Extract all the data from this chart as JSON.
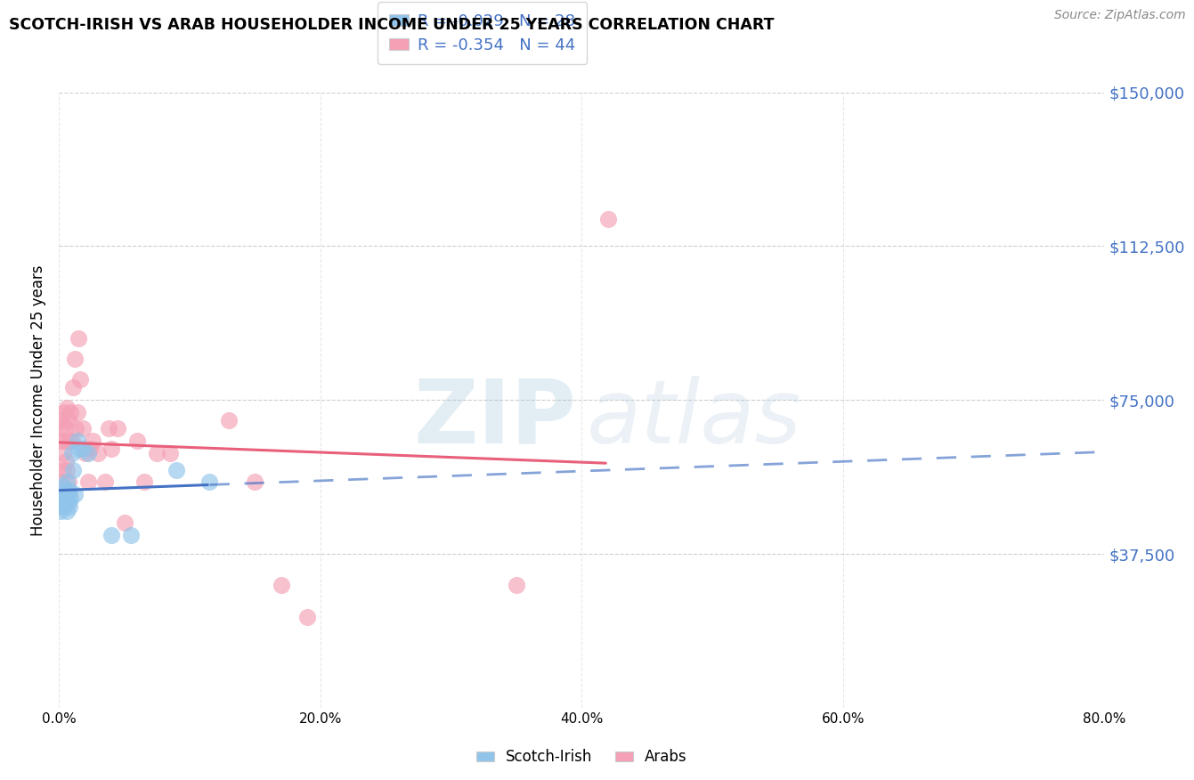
{
  "title": "SCOTCH-IRISH VS ARAB HOUSEHOLDER INCOME UNDER 25 YEARS CORRELATION CHART",
  "source": "Source: ZipAtlas.com",
  "ylabel": "Householder Income Under 25 years",
  "ytick_labels": [
    "$37,500",
    "$75,000",
    "$112,500",
    "$150,000"
  ],
  "ytick_values": [
    37500,
    75000,
    112500,
    150000
  ],
  "ymin": 0,
  "ymax": 150000,
  "xmin": 0.0,
  "xmax": 0.8,
  "legend_blue_r": "R = -0.029",
  "legend_blue_n": "N = 28",
  "legend_pink_r": "R = -0.354",
  "legend_pink_n": "N = 44",
  "blue_scatter_color": "#90C4EA",
  "pink_scatter_color": "#F4A0B5",
  "blue_line_color": "#4472C4",
  "pink_line_color": "#E8607A",
  "scotch_irish_x": [
    0.001,
    0.001,
    0.002,
    0.002,
    0.003,
    0.003,
    0.004,
    0.004,
    0.005,
    0.005,
    0.006,
    0.006,
    0.007,
    0.007,
    0.008,
    0.008,
    0.009,
    0.01,
    0.011,
    0.012,
    0.014,
    0.015,
    0.018,
    0.022,
    0.04,
    0.055,
    0.09,
    0.115
  ],
  "scotch_irish_y": [
    50000,
    48000,
    52000,
    50000,
    54000,
    49000,
    52000,
    50000,
    51000,
    53000,
    48000,
    55000,
    52000,
    50000,
    53000,
    49000,
    51000,
    62000,
    58000,
    52000,
    65000,
    63000,
    63000,
    62000,
    42000,
    42000,
    58000,
    55000
  ],
  "arab_x": [
    0.001,
    0.001,
    0.002,
    0.002,
    0.003,
    0.003,
    0.004,
    0.004,
    0.005,
    0.005,
    0.006,
    0.006,
    0.007,
    0.007,
    0.008,
    0.009,
    0.01,
    0.011,
    0.012,
    0.013,
    0.014,
    0.015,
    0.016,
    0.018,
    0.02,
    0.022,
    0.024,
    0.026,
    0.03,
    0.035,
    0.038,
    0.04,
    0.045,
    0.05,
    0.06,
    0.065,
    0.075,
    0.085,
    0.13,
    0.15,
    0.17,
    0.19,
    0.35,
    0.42
  ],
  "arab_y": [
    68000,
    55000,
    70000,
    65000,
    62000,
    58000,
    65000,
    72000,
    60000,
    68000,
    73000,
    58000,
    70000,
    55000,
    65000,
    72000,
    65000,
    78000,
    85000,
    68000,
    72000,
    90000,
    80000,
    68000,
    62000,
    55000,
    63000,
    65000,
    62000,
    55000,
    68000,
    63000,
    68000,
    45000,
    65000,
    55000,
    62000,
    62000,
    70000,
    55000,
    30000,
    22000,
    30000,
    119000
  ]
}
